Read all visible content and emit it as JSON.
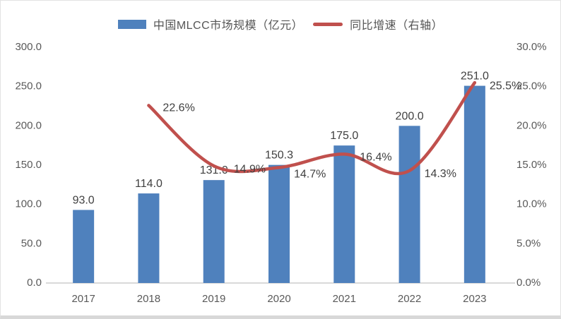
{
  "page": {
    "background": "#ffffff",
    "frame_border_color": "#e2e2e2",
    "axis_line_color": "#d9d9d9"
  },
  "legend": {
    "items": [
      {
        "label": "中国MLCC市场规模（亿元）",
        "marker": "bar-swatch",
        "color": "#4F81BD"
      },
      {
        "label": "同比增速（右轴）",
        "marker": "line-swatch",
        "color": "#C0504D"
      }
    ]
  },
  "chart_data": {
    "type": "combo-bar-line",
    "categories": [
      "2017",
      "2018",
      "2019",
      "2020",
      "2021",
      "2022",
      "2023"
    ],
    "series": [
      {
        "name": "中国MLCC市场规模（亿元）",
        "type": "bar",
        "axis": "left",
        "color": "#4F81BD",
        "values": [
          93.0,
          114.0,
          131.0,
          150.3,
          175.0,
          200.0,
          251.0
        ],
        "labels": [
          "93.0",
          "114.0",
          "131.0",
          "150.3",
          "175.0",
          "200.0",
          "251.0"
        ]
      },
      {
        "name": "同比增速（右轴）",
        "type": "line",
        "axis": "right",
        "color": "#C0504D",
        "values": [
          null,
          22.6,
          14.9,
          14.7,
          16.4,
          14.3,
          25.5
        ],
        "labels": [
          null,
          "22.6%",
          "14.9%",
          "14.7%",
          "16.4%",
          "14.3%",
          "25.5%"
        ]
      }
    ],
    "left_axis": {
      "min": 0,
      "max": 300,
      "step": 50,
      "tick_labels": [
        "0.0",
        "50.0",
        "100.0",
        "150.0",
        "200.0",
        "250.0",
        "300.0"
      ]
    },
    "right_axis": {
      "min": 0,
      "max": 30,
      "step": 5,
      "tick_labels": [
        "0.0%",
        "5.0%",
        "10.0%",
        "15.0%",
        "20.0%",
        "25.0%",
        "30.0%"
      ]
    },
    "grid": false,
    "legend_position": "top"
  }
}
